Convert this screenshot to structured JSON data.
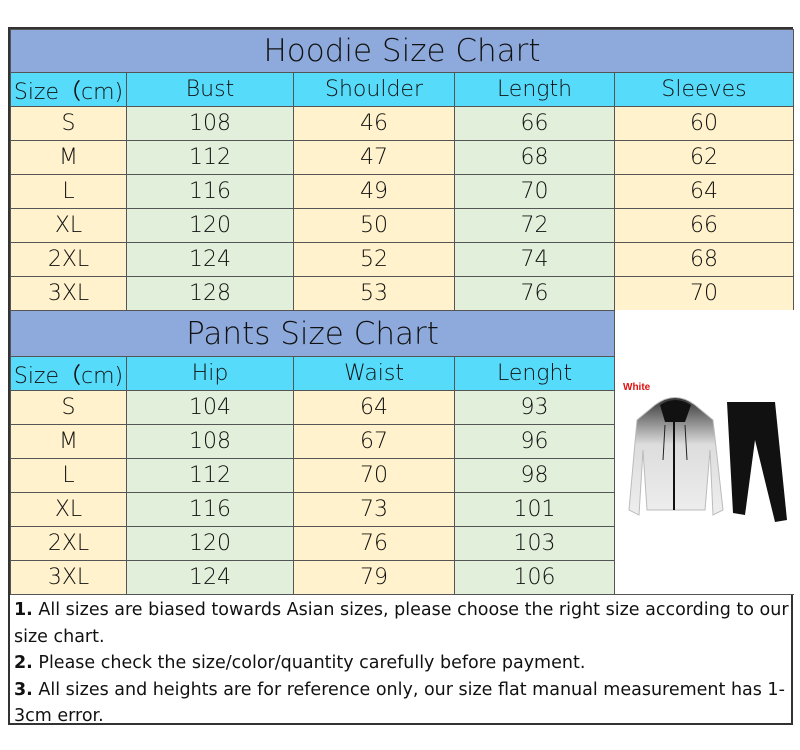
{
  "hoodie": {
    "title": "Hoodie Size Chart",
    "headers": [
      "Size（cm)",
      "Bust",
      "Shoulder",
      "Length",
      "Sleeves"
    ],
    "rows": [
      [
        "S",
        "108",
        "46",
        "66",
        "60"
      ],
      [
        "M",
        "112",
        "47",
        "68",
        "62"
      ],
      [
        "L",
        "116",
        "49",
        "70",
        "64"
      ],
      [
        "XL",
        "120",
        "50",
        "72",
        "66"
      ],
      [
        "2XL",
        "124",
        "52",
        "74",
        "68"
      ],
      [
        "3XL",
        "128",
        "53",
        "76",
        "70"
      ]
    ]
  },
  "pants": {
    "title": "Pants Size Chart",
    "headers": [
      "Size（cm)",
      "Hip",
      "Waist",
      "Lenght"
    ],
    "rows": [
      [
        "S",
        "104",
        "64",
        "93"
      ],
      [
        "M",
        "108",
        "67",
        "96"
      ],
      [
        "L",
        "112",
        "70",
        "98"
      ],
      [
        "XL",
        "116",
        "73",
        "101"
      ],
      [
        "2XL",
        "120",
        "76",
        "103"
      ],
      [
        "3XL",
        "124",
        "79",
        "106"
      ]
    ]
  },
  "product": {
    "color_label": "White"
  },
  "notes": [
    {
      "num": "1.",
      "text": " All sizes are biased towards Asian sizes, please choose the right size according to our size chart."
    },
    {
      "num": "2.",
      "text": " Please check the size/color/quantity carefully before payment."
    },
    {
      "num": "3.",
      "text": " All sizes and heights are for reference only, our size flat manual measurement has 1-3cm error."
    }
  ]
}
